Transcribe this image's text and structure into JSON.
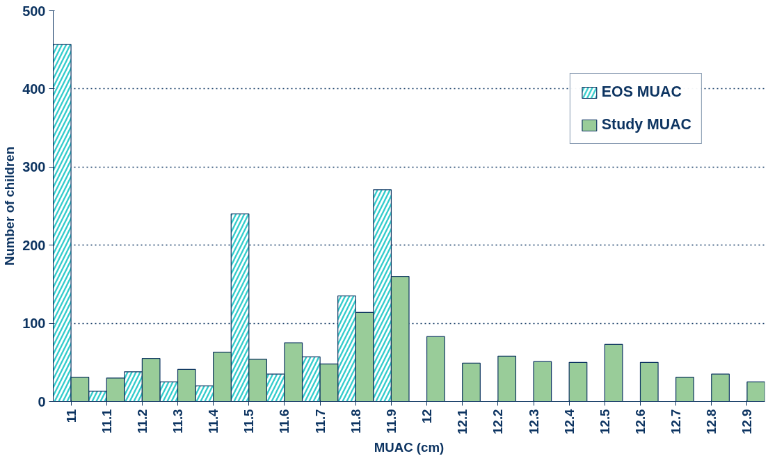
{
  "chart_data": {
    "type": "bar",
    "xlabel": "MUAC (cm)",
    "ylabel": "Number of children",
    "categories": [
      "11",
      "11.1",
      "11.2",
      "11.3",
      "11.4",
      "11.5",
      "11.6",
      "11.7",
      "11.8",
      "11.9",
      "12",
      "12.1",
      "12.2",
      "12.3",
      "12.4",
      "12.5",
      "12.6",
      "12.7",
      "12.8",
      "12.9"
    ],
    "series": [
      {
        "name": "EOS MUAC",
        "color": "#33cccc",
        "values": [
          457,
          13,
          38,
          25,
          20,
          240,
          35,
          57,
          135,
          271,
          null,
          null,
          null,
          null,
          null,
          null,
          null,
          null,
          null,
          null
        ]
      },
      {
        "name": "Study MUAC",
        "color": "#99cc99",
        "values": [
          31,
          30,
          55,
          41,
          63,
          54,
          75,
          48,
          114,
          160,
          83,
          49,
          58,
          51,
          50,
          73,
          50,
          31,
          35,
          25
        ]
      }
    ],
    "ylim": [
      0,
      500
    ],
    "yticks": [
      0,
      100,
      200,
      300,
      400,
      500
    ],
    "grid": "y",
    "legend": "top right"
  }
}
